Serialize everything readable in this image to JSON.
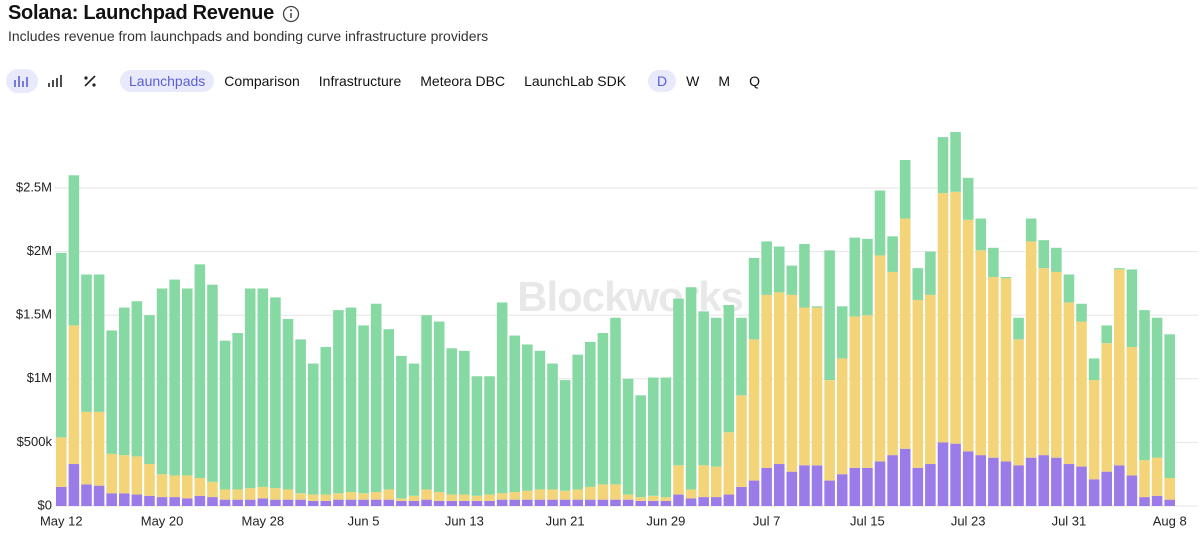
{
  "header": {
    "title": "Solana: Launchpad Revenue",
    "subtitle": "Includes revenue from launchpads and bonding curve infrastructure providers"
  },
  "toolbar": {
    "tabs": [
      "Launchpads",
      "Comparison",
      "Infrastructure",
      "Meteora DBC",
      "LaunchLab SDK"
    ],
    "active_tab": 0,
    "periods": [
      "D",
      "W",
      "M",
      "Q"
    ],
    "active_period": 0
  },
  "chart_data": {
    "type": "stacked_bar",
    "watermark": "Blockworks",
    "categories": [
      "May 12",
      null,
      null,
      null,
      null,
      null,
      null,
      null,
      "May 20",
      null,
      null,
      null,
      null,
      null,
      null,
      null,
      "May 28",
      null,
      null,
      null,
      null,
      null,
      null,
      null,
      "Jun 5",
      null,
      null,
      null,
      null,
      null,
      null,
      null,
      "Jun 13",
      null,
      null,
      null,
      null,
      null,
      null,
      null,
      "Jun 21",
      null,
      null,
      null,
      null,
      null,
      null,
      null,
      "Jun 29",
      null,
      null,
      null,
      null,
      null,
      null,
      null,
      "Jul 7",
      null,
      null,
      null,
      null,
      null,
      null,
      null,
      "Jul 15",
      null,
      null,
      null,
      null,
      null,
      null,
      null,
      "Jul 23",
      null,
      null,
      null,
      null,
      null,
      null,
      null,
      "Jul 31",
      null,
      null,
      null,
      null,
      null,
      null,
      null,
      "Aug 8"
    ],
    "series": [
      {
        "color": "#9b7be8",
        "values": [
          150000,
          330000,
          170000,
          160000,
          100000,
          100000,
          90000,
          80000,
          70000,
          70000,
          60000,
          80000,
          70000,
          50000,
          50000,
          50000,
          60000,
          50000,
          50000,
          50000,
          40000,
          40000,
          50000,
          50000,
          50000,
          50000,
          50000,
          40000,
          40000,
          50000,
          40000,
          40000,
          40000,
          40000,
          40000,
          50000,
          50000,
          50000,
          50000,
          50000,
          50000,
          50000,
          50000,
          50000,
          50000,
          50000,
          40000,
          40000,
          40000,
          90000,
          60000,
          70000,
          70000,
          90000,
          150000,
          200000,
          300000,
          330000,
          270000,
          320000,
          320000,
          200000,
          250000,
          300000,
          300000,
          350000,
          400000,
          450000,
          300000,
          330000,
          500000,
          490000,
          430000,
          400000,
          380000,
          350000,
          320000,
          380000,
          400000,
          380000,
          330000,
          310000,
          210000,
          270000,
          320000,
          240000,
          70000,
          80000,
          50000
        ]
      },
      {
        "color": "#f4d479",
        "values": [
          390000,
          1090000,
          570000,
          580000,
          310000,
          300000,
          300000,
          250000,
          180000,
          170000,
          180000,
          140000,
          120000,
          80000,
          80000,
          90000,
          90000,
          90000,
          80000,
          50000,
          50000,
          50000,
          50000,
          60000,
          50000,
          60000,
          80000,
          20000,
          40000,
          80000,
          70000,
          50000,
          50000,
          40000,
          50000,
          50000,
          60000,
          70000,
          80000,
          80000,
          70000,
          80000,
          100000,
          120000,
          120000,
          40000,
          30000,
          40000,
          30000,
          230000,
          70000,
          250000,
          240000,
          490000,
          720000,
          1110000,
          1360000,
          1350000,
          1390000,
          1240000,
          1240000,
          790000,
          910000,
          1190000,
          1200000,
          1620000,
          1440000,
          1810000,
          1320000,
          1330000,
          1960000,
          1980000,
          1820000,
          1610000,
          1420000,
          1440000,
          990000,
          1700000,
          1470000,
          1460000,
          1270000,
          1140000,
          780000,
          1010000,
          1540000,
          1010000,
          290000,
          300000,
          170000
        ]
      },
      {
        "color": "#87d9a4",
        "values": [
          1450000,
          1180000,
          1080000,
          1080000,
          970000,
          1160000,
          1220000,
          1170000,
          1460000,
          1540000,
          1470000,
          1680000,
          1550000,
          1170000,
          1230000,
          1570000,
          1560000,
          1500000,
          1340000,
          1210000,
          1030000,
          1160000,
          1440000,
          1450000,
          1320000,
          1480000,
          1260000,
          1120000,
          1040000,
          1370000,
          1340000,
          1150000,
          1130000,
          940000,
          930000,
          1500000,
          1230000,
          1150000,
          1090000,
          990000,
          870000,
          1060000,
          1140000,
          1190000,
          1310000,
          910000,
          800000,
          930000,
          940000,
          1310000,
          1590000,
          1210000,
          1170000,
          1000000,
          610000,
          640000,
          420000,
          360000,
          230000,
          500000,
          10000,
          1020000,
          410000,
          620000,
          600000,
          510000,
          280000,
          460000,
          250000,
          340000,
          440000,
          470000,
          330000,
          250000,
          230000,
          10000,
          170000,
          180000,
          220000,
          190000,
          220000,
          140000,
          170000,
          140000,
          10000,
          610000,
          1180000,
          1100000,
          1130000
        ]
      }
    ],
    "ylim": [
      0,
      3000000
    ],
    "yticks": [
      {
        "value": 0,
        "label": "$0"
      },
      {
        "value": 500000,
        "label": "$500k"
      },
      {
        "value": 1000000,
        "label": "$1M"
      },
      {
        "value": 1500000,
        "label": "$1.5M"
      },
      {
        "value": 2000000,
        "label": "$2M"
      },
      {
        "value": 2500000,
        "label": "$2.5M"
      }
    ],
    "grid": true
  }
}
